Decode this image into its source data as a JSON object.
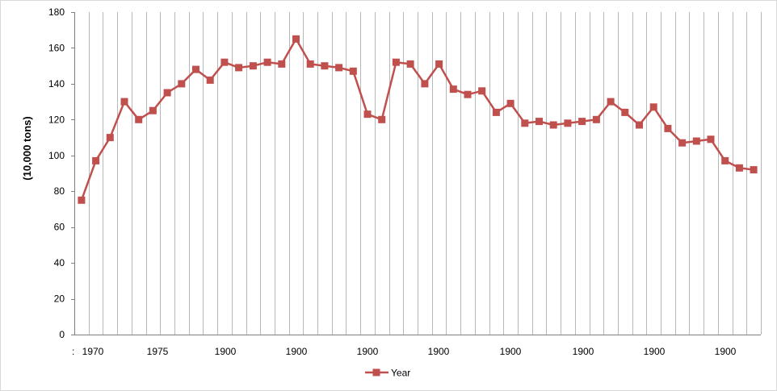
{
  "chart_data": {
    "type": "line",
    "title": "",
    "xlabel": "",
    "ylabel": "(10,000 tons)",
    "ylim": [
      0,
      180
    ],
    "yticks": [
      "0",
      "20",
      "40",
      "60",
      "80",
      "100",
      "120",
      "140",
      "160",
      "180"
    ],
    "xtick_labels": [
      ":",
      "1970",
      "1975",
      "1900",
      "1900",
      "1900",
      "1900",
      "1900",
      "1900",
      "1900",
      "1900"
    ],
    "grid": "vertical lines at every category",
    "legend_position": "bottom-center",
    "series_color": "#c0504d",
    "series": [
      {
        "name": "Year",
        "values": [
          75,
          97,
          110,
          130,
          120,
          125,
          135,
          140,
          148,
          142,
          152,
          149,
          150,
          152,
          151,
          165,
          151,
          150,
          149,
          147,
          123,
          120,
          152,
          151,
          140,
          151,
          137,
          134,
          136,
          124,
          129,
          118,
          119,
          117,
          118,
          119,
          120,
          130,
          124,
          117,
          127,
          115,
          107,
          108,
          109,
          97,
          93,
          92
        ]
      }
    ]
  }
}
